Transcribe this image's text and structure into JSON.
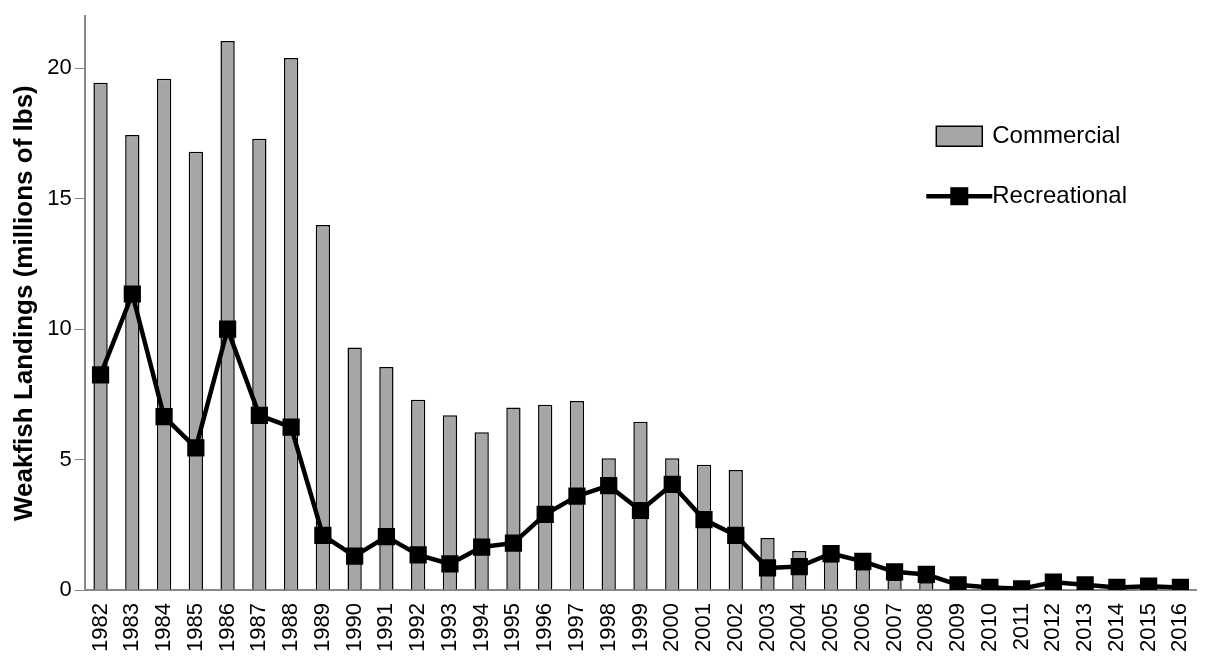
{
  "chart_data": {
    "type": "bar",
    "ylabel": "Weakfish Landings (millions of lbs)",
    "categories": [
      "1982",
      "1983",
      "1984",
      "1985",
      "1986",
      "1987",
      "1988",
      "1989",
      "1990",
      "1991",
      "1992",
      "1993",
      "1994",
      "1995",
      "1996",
      "1997",
      "1998",
      "1999",
      "2000",
      "2001",
      "2002",
      "2003",
      "2004",
      "2005",
      "2006",
      "2007",
      "2008",
      "2009",
      "2010",
      "2011",
      "2012",
      "2013",
      "2014",
      "2015",
      "2016"
    ],
    "series": [
      {
        "name": "Commercial",
        "color": "#a6a6a6",
        "values": [
          19.45,
          17.45,
          19.6,
          16.8,
          21.05,
          17.3,
          20.4,
          14.0,
          9.3,
          8.55,
          7.3,
          6.7,
          6.05,
          7.0,
          7.1,
          7.25,
          5.05,
          6.45,
          5.05,
          4.8,
          4.6,
          2.0,
          1.5,
          1.1,
          0.8,
          0.4,
          0.3,
          null,
          null,
          null,
          null,
          null,
          null,
          null,
          null
        ]
      },
      {
        "name": "Recreational",
        "type": "line",
        "color": "#000000",
        "values": [
          8.25,
          11.35,
          6.65,
          5.45,
          10.0,
          6.7,
          6.25,
          2.1,
          1.3,
          2.05,
          1.35,
          1.0,
          1.65,
          1.8,
          2.9,
          3.6,
          4.0,
          3.05,
          4.05,
          2.7,
          2.1,
          0.85,
          0.9,
          1.4,
          1.1,
          0.7,
          0.6,
          0.2,
          0.1,
          0.05,
          0.3,
          0.2,
          0.1,
          0.15,
          0.1
        ]
      }
    ],
    "ylim": [
      0,
      22
    ],
    "yticks": [
      0,
      5,
      10,
      15,
      20
    ],
    "grid": false,
    "legend": "top right",
    "marker": "square",
    "line_style": "solid"
  }
}
